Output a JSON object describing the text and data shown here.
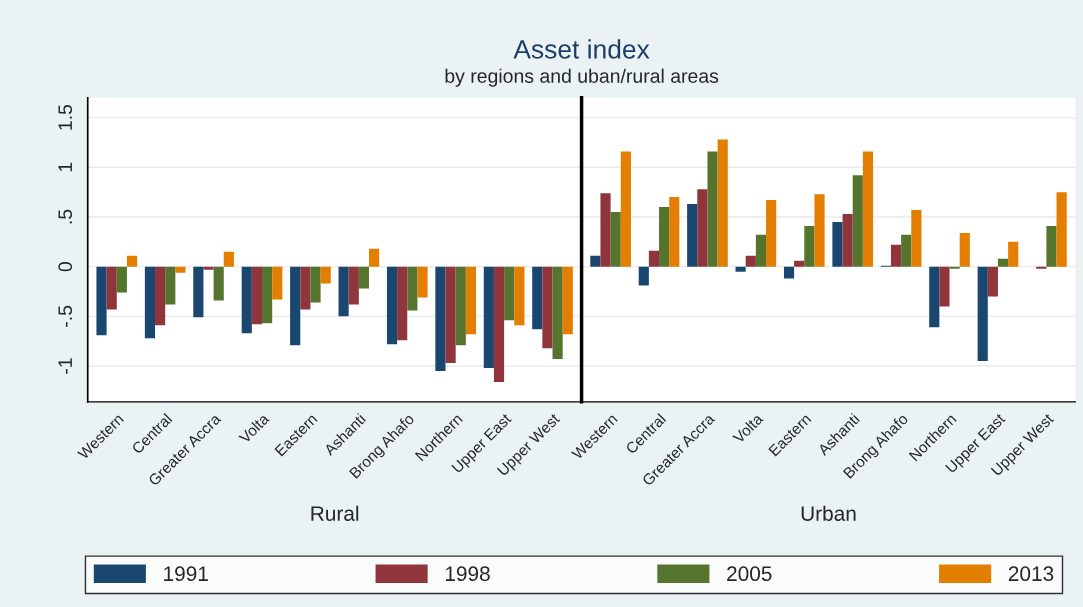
{
  "chart_data": [
    {
      "type": "bar",
      "title": "Asset index",
      "subtitle": "by regions and uban/rural areas",
      "xlabel": "Rural",
      "categories": [
        "Western",
        "Central",
        "Greater Accra",
        "Volta",
        "Eastern",
        "Ashanti",
        "Brong Ahafo",
        "Northern",
        "Upper East",
        "Upper West"
      ],
      "series": [
        {
          "name": "1991",
          "color": "#1a476f",
          "values": [
            -0.69,
            -0.72,
            -0.51,
            -0.67,
            -0.79,
            -0.5,
            -0.78,
            -1.05,
            -1.02,
            -0.63
          ]
        },
        {
          "name": "1998",
          "color": "#90353b",
          "values": [
            -0.43,
            -0.59,
            -0.03,
            -0.58,
            -0.43,
            -0.38,
            -0.74,
            -0.97,
            -1.16,
            -0.82
          ]
        },
        {
          "name": "2005",
          "color": "#55752f",
          "values": [
            -0.26,
            -0.38,
            -0.34,
            -0.57,
            -0.36,
            -0.22,
            -0.44,
            -0.79,
            -0.54,
            -0.93
          ]
        },
        {
          "name": "2013",
          "color": "#e37e00",
          "values": [
            0.11,
            -0.06,
            0.15,
            -0.33,
            -0.17,
            0.18,
            -0.31,
            -0.68,
            -0.59,
            -0.68
          ]
        }
      ],
      "ylim": [
        -1.36,
        1.7
      ],
      "yticks": [
        {
          "value": -1,
          "label": "-1"
        },
        {
          "value": -0.5,
          "label": "-.5"
        },
        0,
        {
          "value": 0.5,
          "label": ".5"
        },
        1,
        1.5
      ],
      "grid": "y",
      "legend": "bottom"
    },
    {
      "type": "bar",
      "xlabel": "Urban",
      "categories": [
        "Western",
        "Central",
        "Greater Accra",
        "Volta",
        "Eastern",
        "Ashanti",
        "Brong Ahafo",
        "Northern",
        "Upper East",
        "Upper West"
      ],
      "series": [
        {
          "color": "#1a476f",
          "values": [
            0.11,
            -0.19,
            0.63,
            -0.05,
            -0.12,
            0.45,
            0.01,
            -0.61,
            -0.95,
            0
          ]
        },
        {
          "color": "#90353b",
          "values": [
            0.74,
            0.16,
            0.78,
            0.11,
            0.06,
            0.53,
            0.22,
            -0.4,
            -0.3,
            -0.02
          ]
        },
        {
          "color": "#55752f",
          "values": [
            0.55,
            0.6,
            1.16,
            0.32,
            0.41,
            0.92,
            0.32,
            -0.02,
            0.08,
            0.41
          ]
        },
        {
          "color": "#e37e00",
          "values": [
            1.16,
            0.7,
            1.28,
            0.67,
            0.73,
            1.16,
            0.57,
            0.34,
            0.25,
            0.75
          ]
        }
      ],
      "ylim": [
        -1.36,
        1.7
      ],
      "yticks": [
        -1,
        -0.5,
        0,
        0.5,
        1,
        1.5
      ],
      "grid": "y",
      "tick_labels": "x"
    }
  ]
}
